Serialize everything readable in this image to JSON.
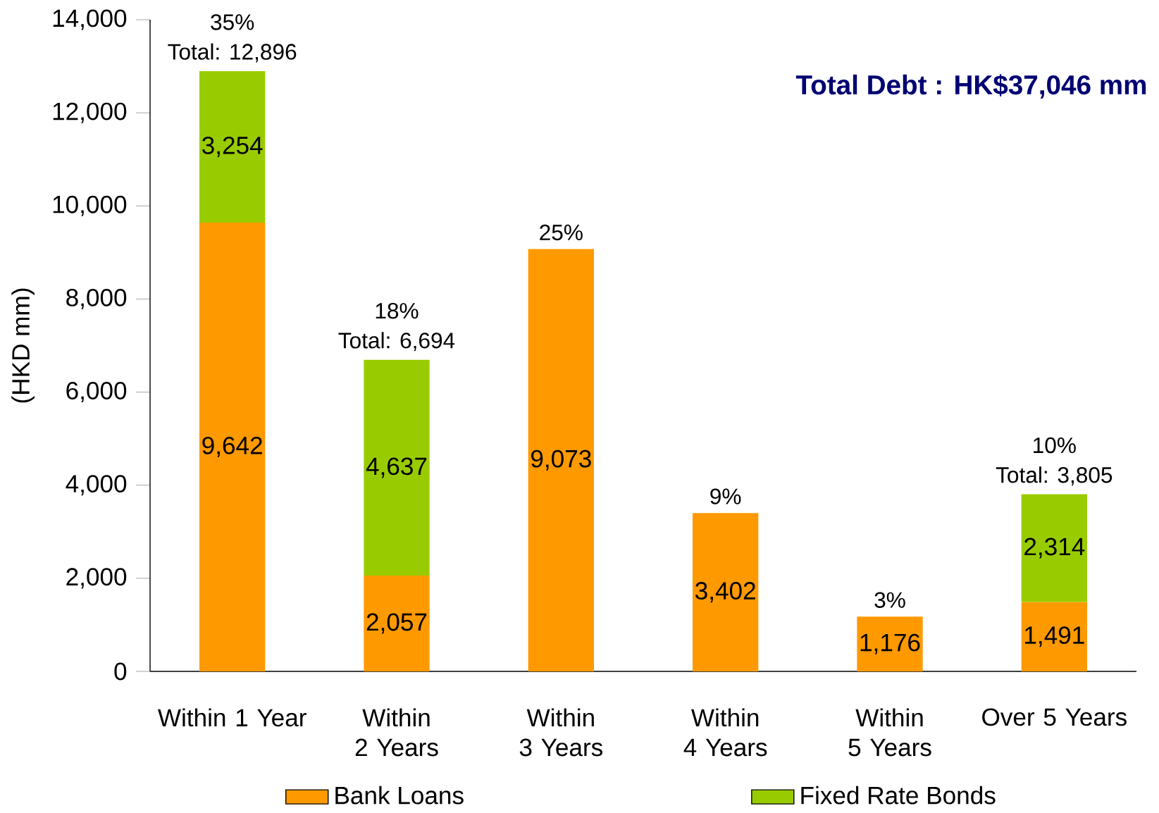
{
  "chart_data": {
    "type": "bar",
    "stacked": true,
    "ylabel": "(HKD mm)",
    "categories": [
      "Within 1 Year",
      "Within 2 Years",
      "Within 3 Years",
      "Within 4 Years",
      "Within 5 Years",
      "Over 5 Years"
    ],
    "series": [
      {
        "name": "Bank Loans",
        "color": "#ff9900",
        "values": [
          9642,
          2057,
          9073,
          3402,
          1176,
          1491
        ],
        "value_labels": [
          "9,642",
          "2,057",
          "9,073",
          "3,402",
          "1,176",
          "1,491"
        ]
      },
      {
        "name": "Fixed Rate Bonds",
        "color": "#99cc00",
        "values": [
          3254,
          4637,
          null,
          null,
          null,
          2314
        ],
        "value_labels": [
          "3,254",
          "4,637",
          null,
          null,
          null,
          "2,314"
        ]
      }
    ],
    "totals": [
      "Total: 12,896",
      "Total: 6,694",
      null,
      null,
      null,
      "Total: 3,805"
    ],
    "annotations": [
      {
        "text": "35%",
        "x": "Within 1 Year",
        "y": 12896
      },
      {
        "text": "18%",
        "x": "Within 2 Years",
        "y": 6694
      },
      {
        "text": "25%",
        "x": "Within 3 Years",
        "y": 9073
      },
      {
        "text": "9%",
        "x": "Within 4 Years",
        "y": 3402
      },
      {
        "text": "3%",
        "x": "Within 5 Years",
        "y": 1176
      },
      {
        "text": "10%",
        "x": "Over 5 Years",
        "y": 3805
      },
      "Total Debt : HK$37,046 mm"
    ],
    "ylim": [
      0,
      14000
    ],
    "yticks": [
      0,
      {
        "value": 2000,
        "label": "2,000"
      },
      {
        "value": 4000,
        "label": "4,000"
      },
      {
        "value": 6000,
        "label": "6,000"
      },
      {
        "value": 8000,
        "label": "8,000"
      },
      {
        "value": 10000,
        "label": "10,000"
      },
      {
        "value": 12000,
        "label": "12,000"
      },
      {
        "value": 14000,
        "label": "14,000"
      }
    ],
    "grid": false,
    "legend": "bottom"
  }
}
